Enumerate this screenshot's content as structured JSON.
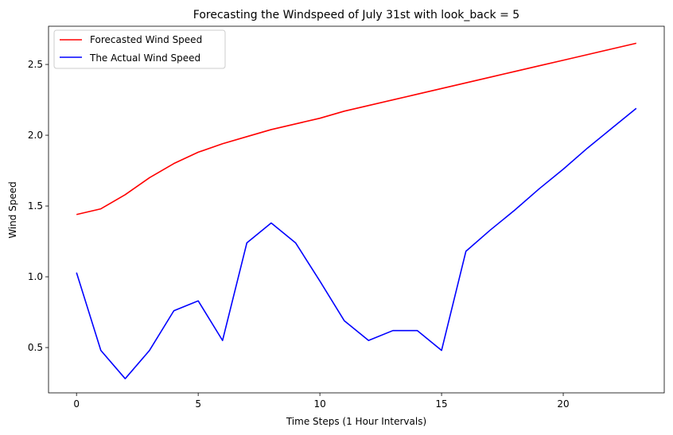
{
  "chart_data": {
    "type": "line",
    "title": "Forecasting the Windspeed of July 31st with look_back = 5",
    "xlabel": "Time Steps (1 Hour Intervals)",
    "ylabel": "Wind Speed",
    "xlim": [
      -1.15,
      24.15
    ],
    "ylim": [
      0.18,
      2.77
    ],
    "xticks": [
      0,
      5,
      10,
      15,
      20
    ],
    "yticks": [
      0.5,
      1.0,
      1.5,
      2.0,
      2.5
    ],
    "xtick_labels": [
      "0",
      "5",
      "10",
      "15",
      "20"
    ],
    "ytick_labels": [
      "0.5",
      "1.0",
      "1.5",
      "2.0",
      "2.5"
    ],
    "grid": false,
    "legend_position": "top-left",
    "x": [
      0,
      1,
      2,
      3,
      4,
      5,
      6,
      7,
      8,
      9,
      10,
      11,
      12,
      13,
      14,
      15,
      16,
      17,
      18,
      19,
      20,
      21,
      22,
      23
    ],
    "series": [
      {
        "name": "Forecasted Wind Speed",
        "color": "#ff0000",
        "values": [
          1.44,
          1.48,
          1.58,
          1.7,
          1.8,
          1.88,
          1.94,
          1.99,
          2.04,
          2.08,
          2.12,
          2.17,
          2.21,
          2.25,
          2.29,
          2.33,
          2.37,
          2.41,
          2.45,
          2.49,
          2.53,
          2.57,
          2.61,
          2.65
        ]
      },
      {
        "name": "The Actual Wind Speed",
        "color": "#0000ff",
        "values": [
          1.03,
          0.48,
          0.28,
          0.48,
          0.76,
          0.83,
          0.55,
          1.24,
          1.38,
          1.24,
          0.97,
          0.69,
          0.55,
          0.62,
          0.62,
          0.48,
          1.18,
          1.33,
          1.47,
          1.62,
          1.76,
          1.91,
          2.05,
          2.19
        ]
      }
    ]
  }
}
